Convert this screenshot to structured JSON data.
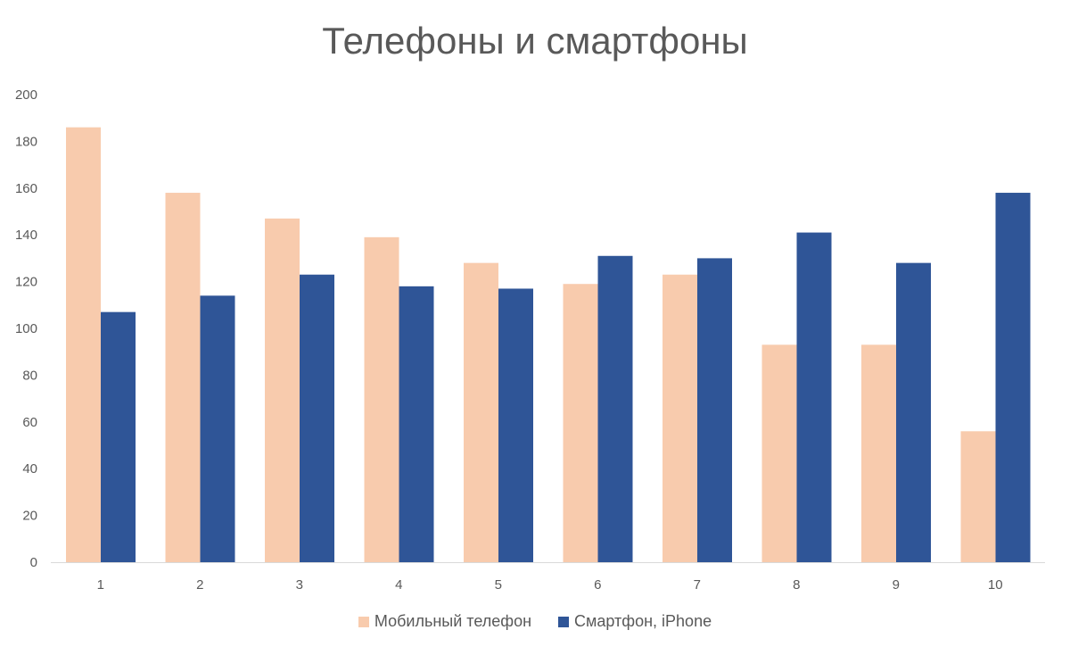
{
  "chart_data": {
    "type": "bar",
    "title": "Телефоны и смартфоны",
    "categories": [
      "1",
      "2",
      "3",
      "4",
      "5",
      "6",
      "7",
      "8",
      "9",
      "10"
    ],
    "series": [
      {
        "name": "Мобильный телефон",
        "color": "#F8CBAD",
        "values": [
          186,
          158,
          147,
          139,
          128,
          119,
          123,
          93,
          93,
          56
        ]
      },
      {
        "name": "Смартфон, iPhone",
        "color": "#2F5597",
        "values": [
          107,
          114,
          123,
          118,
          117,
          131,
          130,
          141,
          128,
          158
        ]
      }
    ],
    "ylim": [
      0,
      200
    ],
    "yticks": [
      0,
      20,
      40,
      60,
      80,
      100,
      120,
      140,
      160,
      180,
      200
    ],
    "grid": false,
    "legend_position": "bottom"
  }
}
